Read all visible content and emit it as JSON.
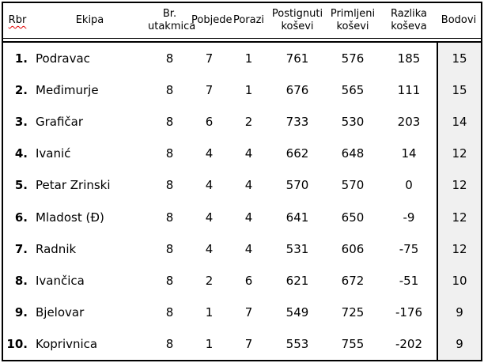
{
  "colors": {
    "border": "#000000",
    "text": "#000000",
    "points_column_bg": "#f0f0f0",
    "spellcheck_underline": "#e00000"
  },
  "table": {
    "columns": [
      {
        "label_line1": "Rbr",
        "label_line2": ""
      },
      {
        "label_line1": "Ekipa",
        "label_line2": ""
      },
      {
        "label_line1": "Br.",
        "label_line2": "utakmica"
      },
      {
        "label_line1": "Pobjede",
        "label_line2": ""
      },
      {
        "label_line1": "Porazi",
        "label_line2": ""
      },
      {
        "label_line1": "Postignuti",
        "label_line2": "koševi"
      },
      {
        "label_line1": "Primljeni",
        "label_line2": "koševi"
      },
      {
        "label_line1": "Razlika",
        "label_line2": "koševa"
      },
      {
        "label_line1": "Bodovi",
        "label_line2": ""
      }
    ],
    "rows": [
      {
        "rank": "1.",
        "team": "Podravac",
        "games": "8",
        "wins": "7",
        "losses": "1",
        "scored": "761",
        "conceded": "576",
        "diff": "185",
        "points": "15"
      },
      {
        "rank": "2.",
        "team": "Međimurje",
        "games": "8",
        "wins": "7",
        "losses": "1",
        "scored": "676",
        "conceded": "565",
        "diff": "111",
        "points": "15"
      },
      {
        "rank": "3.",
        "team": "Grafičar",
        "games": "8",
        "wins": "6",
        "losses": "2",
        "scored": "733",
        "conceded": "530",
        "diff": "203",
        "points": "14"
      },
      {
        "rank": "4.",
        "team": "Ivanić",
        "games": "8",
        "wins": "4",
        "losses": "4",
        "scored": "662",
        "conceded": "648",
        "diff": "14",
        "points": "12"
      },
      {
        "rank": "5.",
        "team": "Petar Zrinski",
        "games": "8",
        "wins": "4",
        "losses": "4",
        "scored": "570",
        "conceded": "570",
        "diff": "0",
        "points": "12"
      },
      {
        "rank": "6.",
        "team": "Mladost (Đ)",
        "games": "8",
        "wins": "4",
        "losses": "4",
        "scored": "641",
        "conceded": "650",
        "diff": "-9",
        "points": "12"
      },
      {
        "rank": "7.",
        "team": "Radnik",
        "games": "8",
        "wins": "4",
        "losses": "4",
        "scored": "531",
        "conceded": "606",
        "diff": "-75",
        "points": "12"
      },
      {
        "rank": "8.",
        "team": "Ivančica",
        "games": "8",
        "wins": "2",
        "losses": "6",
        "scored": "621",
        "conceded": "672",
        "diff": "-51",
        "points": "10"
      },
      {
        "rank": "9.",
        "team": "Bjelovar",
        "games": "8",
        "wins": "1",
        "losses": "7",
        "scored": "549",
        "conceded": "725",
        "diff": "-176",
        "points": "9"
      },
      {
        "rank": "10.",
        "team": "Koprivnica",
        "games": "8",
        "wins": "1",
        "losses": "7",
        "scored": "553",
        "conceded": "755",
        "diff": "-202",
        "points": "9"
      }
    ]
  }
}
